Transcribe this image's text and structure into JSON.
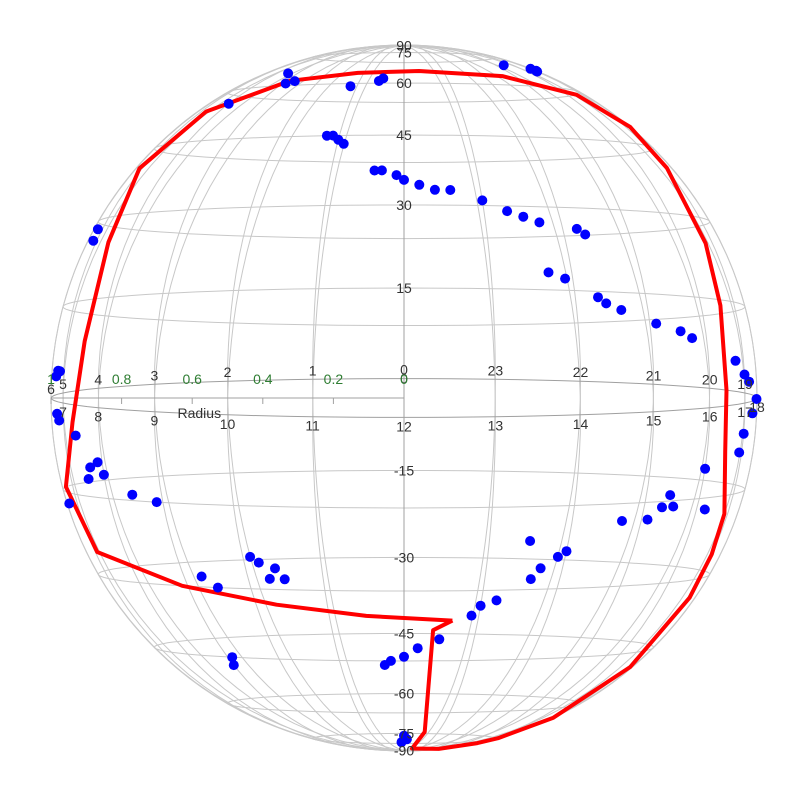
{
  "chart_data": {
    "type": "scatter",
    "projection": "3d-sphere",
    "lat_ticks": [
      "90",
      "75",
      "60",
      "45",
      "30",
      "15",
      "0",
      "-15",
      "-30",
      "-45",
      "-60",
      "-75",
      "-90"
    ],
    "lon_ticks_back": [
      "6",
      "5",
      "4",
      "3",
      "2",
      "1",
      "0",
      "23",
      "22",
      "21",
      "20",
      "19"
    ],
    "lon_ticks_front": [
      "7",
      "8",
      "9",
      "10",
      "11",
      "12",
      "13",
      "14",
      "15",
      "16",
      "17",
      "18"
    ],
    "radius_axis": {
      "label": "Radius",
      "ticks": [
        "1",
        "0.8",
        "0.6",
        "0.4",
        "0.2",
        "0"
      ]
    },
    "colors": {
      "points": "#0000ff",
      "track": "#ff0000",
      "grid": "#c8c8c8"
    },
    "series": [
      {
        "type": "scatter",
        "color": "#0000ff",
        "points": [
          [
            19.0,
            67
          ],
          [
            18.2,
            68
          ],
          [
            18.1,
            69
          ],
          [
            16.4,
            72
          ],
          [
            11.4,
            68
          ],
          [
            11.3,
            67
          ],
          [
            10.6,
            65
          ],
          [
            8.7,
            66
          ],
          [
            8.5,
            65
          ],
          [
            4.0,
            55
          ],
          [
            3.4,
            65
          ],
          [
            1.2,
            45
          ],
          [
            1.1,
            45
          ],
          [
            1.0,
            44
          ],
          [
            0.9,
            43
          ],
          [
            0.4,
            37
          ],
          [
            0.3,
            37
          ],
          [
            0.1,
            36
          ],
          [
            0.0,
            35
          ],
          [
            23.8,
            34
          ],
          [
            23.6,
            33
          ],
          [
            23.4,
            33
          ],
          [
            23.0,
            31
          ],
          [
            22.7,
            29
          ],
          [
            22.5,
            28
          ],
          [
            22.3,
            27
          ],
          [
            21.8,
            26
          ],
          [
            21.7,
            25
          ],
          [
            22.3,
            18
          ],
          [
            22.1,
            17
          ],
          [
            21.7,
            14
          ],
          [
            21.6,
            13
          ],
          [
            21.4,
            12
          ],
          [
            20.9,
            10
          ],
          [
            20.5,
            9
          ],
          [
            20.3,
            8
          ],
          [
            19.3,
            5
          ],
          [
            19.0,
            3
          ],
          [
            18.8,
            2
          ],
          [
            17.8,
            0
          ],
          [
            17.4,
            -2
          ],
          [
            17.0,
            -5
          ],
          [
            16.9,
            -8
          ],
          [
            16.0,
            -10
          ],
          [
            15.4,
            -14
          ],
          [
            15.3,
            -16
          ],
          [
            15.1,
            -18
          ],
          [
            14.7,
            -18
          ],
          [
            14.0,
            -23
          ],
          [
            13.7,
            -26
          ],
          [
            13.6,
            -28
          ],
          [
            13.2,
            -32
          ],
          [
            13.0,
            -33
          ],
          [
            12.9,
            -35
          ],
          [
            13.5,
            -21
          ],
          [
            12.2,
            -42
          ],
          [
            12.0,
            -44
          ],
          [
            11.8,
            -45
          ],
          [
            11.7,
            -46
          ],
          [
            12.5,
            -40
          ],
          [
            13.9,
            -24
          ],
          [
            12.1,
            -72
          ],
          [
            12.0,
            -70
          ],
          [
            11.9,
            -74
          ],
          [
            10.2,
            -25
          ],
          [
            10.1,
            -24
          ],
          [
            10.4,
            -26
          ],
          [
            10.5,
            -28
          ],
          [
            10.3,
            -28
          ],
          [
            9.1,
            -45
          ],
          [
            9.0,
            -47
          ],
          [
            9.5,
            -30
          ],
          [
            9.3,
            -28
          ],
          [
            8.9,
            -15
          ],
          [
            8.5,
            -14
          ],
          [
            8.0,
            -11
          ],
          [
            7.7,
            -10
          ],
          [
            7.4,
            -5
          ],
          [
            7.6,
            -12
          ],
          [
            7.9,
            -9
          ],
          [
            6.8,
            -3
          ],
          [
            6.7,
            -2
          ],
          [
            6.6,
            4
          ],
          [
            6.7,
            5
          ],
          [
            6.5,
            -17
          ],
          [
            6.8,
            5
          ],
          [
            6.6,
            27
          ],
          [
            6.5,
            29
          ],
          [
            15.5,
            -16
          ],
          [
            16.2,
            -17
          ]
        ]
      },
      {
        "type": "line",
        "color": "#ff0000",
        "points": [
          [
            12.65,
            -36
          ],
          [
            12.4,
            -38
          ],
          [
            12.6,
            -68
          ],
          [
            12.5,
            -80
          ],
          [
            15,
            -82
          ],
          [
            16.5,
            -77
          ],
          [
            17,
            -74
          ],
          [
            17.8,
            -65
          ],
          [
            18.3,
            -50
          ],
          [
            18.6,
            -35
          ],
          [
            18.8,
            -27
          ],
          [
            19.0,
            -20
          ],
          [
            19.5,
            -10
          ],
          [
            19.6,
            0
          ],
          [
            19.5,
            14
          ],
          [
            19.3,
            25
          ],
          [
            18.9,
            40
          ],
          [
            18.3,
            50
          ],
          [
            17.2,
            60
          ],
          [
            15.2,
            68
          ],
          [
            12.5,
            71
          ],
          [
            10.5,
            70
          ],
          [
            8.5,
            66
          ],
          [
            6.8,
            55
          ],
          [
            5.2,
            40
          ],
          [
            4.5,
            25
          ],
          [
            4.4,
            8
          ],
          [
            4.7,
            -5
          ],
          [
            5.5,
            -15
          ],
          [
            7.1,
            -25
          ],
          [
            8.9,
            -30
          ],
          [
            10.3,
            -33
          ],
          [
            11.5,
            -35
          ],
          [
            12.65,
            -36
          ]
        ]
      }
    ]
  }
}
